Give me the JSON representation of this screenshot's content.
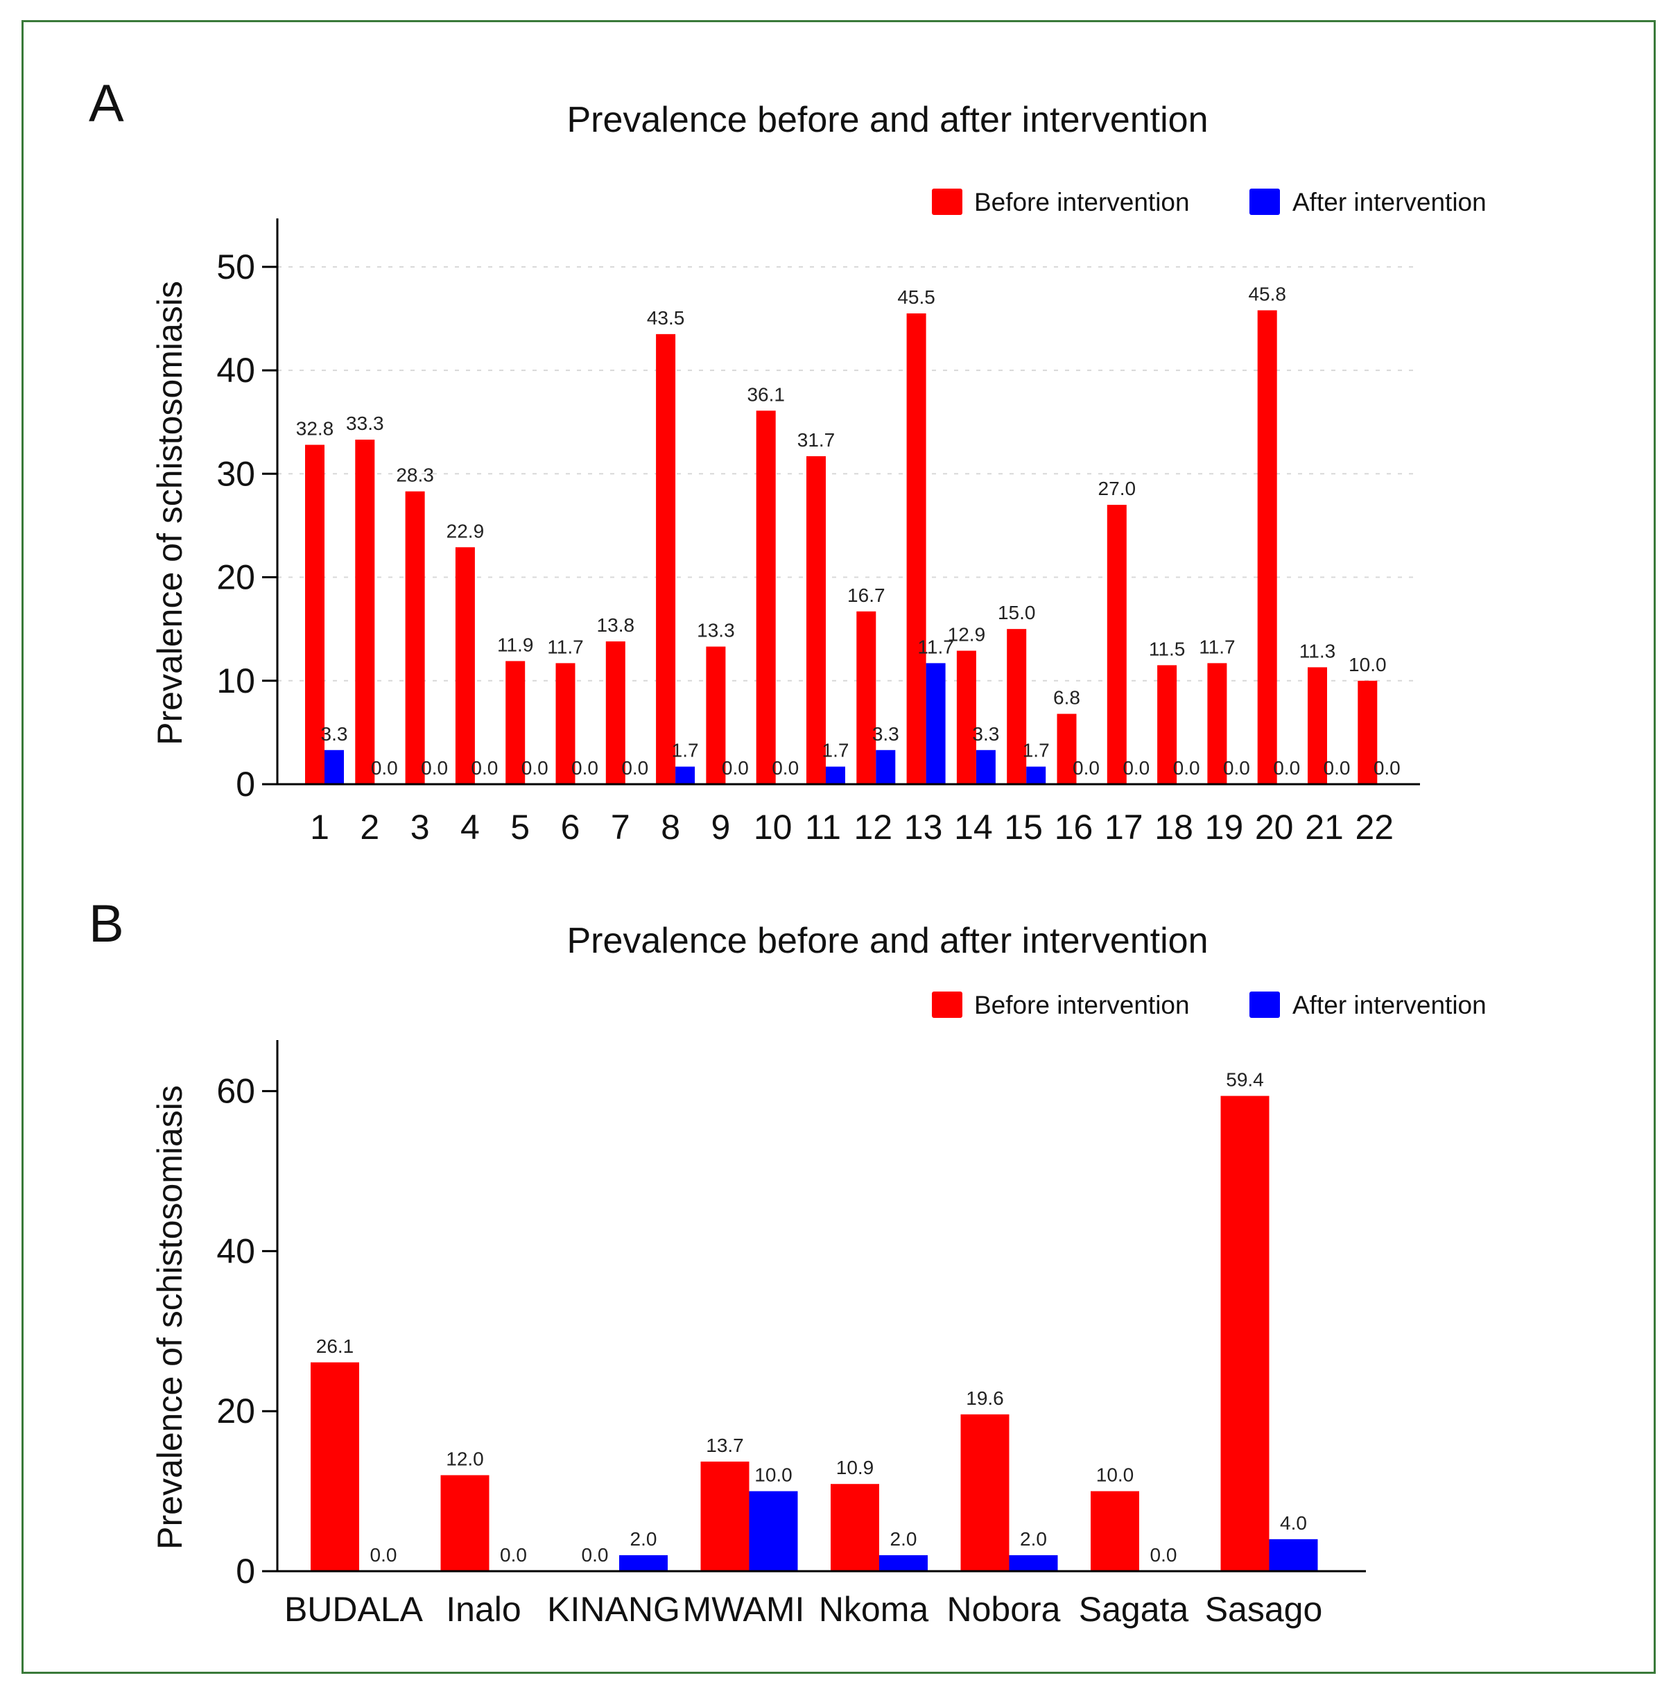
{
  "chart_data": [
    {
      "panel": "A",
      "type": "bar",
      "title": "Prevalence before and after intervention",
      "xlabel": "",
      "ylabel": "Prevalence of schistosomiasis",
      "ylim": [
        0,
        52
      ],
      "yticks": [
        0,
        10,
        20,
        30,
        40,
        50
      ],
      "grid": true,
      "legend_position": "top-right",
      "categories": [
        "1",
        "2",
        "3",
        "4",
        "5",
        "6",
        "7",
        "8",
        "9",
        "10",
        "11",
        "12",
        "13",
        "14",
        "15",
        "16",
        "17",
        "18",
        "19",
        "20",
        "21",
        "22"
      ],
      "series": [
        {
          "name": "Before intervention",
          "color": "#ff0000",
          "values": [
            32.8,
            33.3,
            28.3,
            22.9,
            11.9,
            11.7,
            13.8,
            43.5,
            13.3,
            36.1,
            31.7,
            16.7,
            45.5,
            12.9,
            15.0,
            6.8,
            27.0,
            11.5,
            11.7,
            45.8,
            11.3,
            10.0
          ],
          "labels": [
            "32.8",
            "33.3",
            "28.3",
            "22.9",
            "11.9",
            "11.7",
            "13.8",
            "43.5",
            "13.3",
            "36.1",
            "31.7",
            "16.7",
            "45.5",
            "12.9",
            "15.0",
            "6.8",
            "27.0",
            "11.5",
            "11.7",
            "45.8",
            "11.3",
            "10.0"
          ]
        },
        {
          "name": "After intervention",
          "color": "#0000ff",
          "values": [
            3.3,
            0.0,
            0.0,
            0.0,
            0.0,
            0.0,
            0.0,
            1.7,
            0.0,
            0.0,
            1.7,
            3.3,
            11.7,
            3.3,
            1.7,
            0.0,
            0.0,
            0.0,
            0.0,
            0.0,
            0.0,
            0.0
          ],
          "labels": [
            "3.3",
            "0.0",
            "0.0",
            "0.0",
            "0.0",
            "0.0",
            "0.0",
            "1.7",
            "0.0",
            "0.0",
            "1.7",
            "3.3",
            "11.7",
            "3.3",
            "1.7",
            "0.0",
            "0.0",
            "0.0",
            "0.0",
            "0.0",
            "0.0",
            "0.0"
          ]
        }
      ]
    },
    {
      "panel": "B",
      "type": "bar",
      "title": "Prevalence before and after intervention",
      "xlabel": "",
      "ylabel": "Prevalence of schistosomiasis",
      "ylim": [
        0,
        63
      ],
      "yticks": [
        0,
        20,
        40,
        60
      ],
      "grid": false,
      "legend_position": "top-right",
      "categories": [
        "BUDALA",
        "Inalo",
        "KINANG",
        "MWAMI",
        "Nkoma",
        "Nobora",
        "Sagata",
        "Sasago"
      ],
      "series": [
        {
          "name": "Before intervention",
          "color": "#ff0000",
          "values": [
            26.1,
            12.0,
            0.0,
            13.7,
            10.9,
            19.6,
            10.0,
            59.4
          ],
          "labels": [
            "26.1",
            "12.0",
            "0.0",
            "13.7",
            "10.9",
            "19.6",
            "10.0",
            "59.4"
          ]
        },
        {
          "name": "After intervention",
          "color": "#0000ff",
          "values": [
            0.0,
            0.0,
            2.0,
            10.0,
            2.0,
            2.0,
            0.0,
            4.0
          ],
          "labels": [
            "0.0",
            "0.0",
            "2.0",
            "10.0",
            "2.0",
            "2.0",
            "0.0",
            "4.0"
          ]
        }
      ]
    }
  ]
}
